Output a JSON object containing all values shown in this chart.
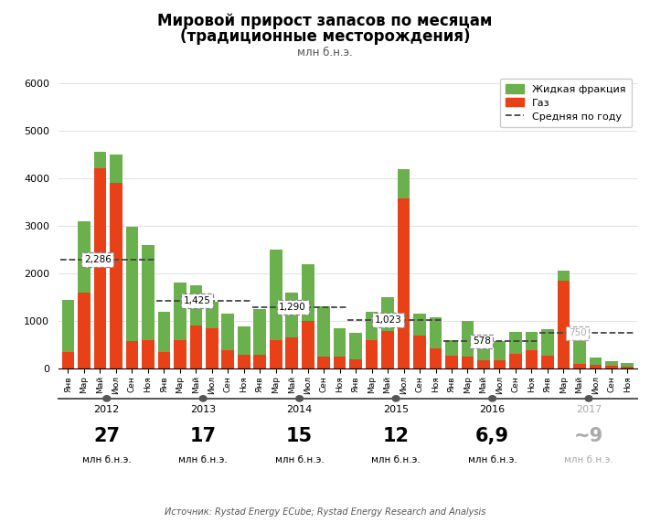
{
  "title_line1": "Мировой прирост запасов по месяцам",
  "title_line2": "(традиционные месторождения)",
  "subtitle": "млн б.н.э.",
  "source": "Источник: Rystad Energy ECube; Rystad Energy Research and Analysis",
  "legend_liquid": "Жидкая фракция",
  "legend_gas": "Газ",
  "legend_avg": "Средняя по году",
  "months": [
    "Янв",
    "Мар",
    "Май",
    "Июл",
    "Сен",
    "Ноя",
    "Янв",
    "Мар",
    "Май",
    "Июл",
    "Сен",
    "Ноя",
    "Янв",
    "Мар",
    "Май",
    "Июл",
    "Сен",
    "Ноя",
    "Янв",
    "Мар",
    "Май",
    "Июл",
    "Сен",
    "Ноя",
    "Янв",
    "Мар",
    "Май",
    "Июл",
    "Сен",
    "Ноя",
    "Янв",
    "Мар",
    "Май",
    "Июл",
    "Сен",
    "Ноя"
  ],
  "gas_values": [
    350,
    1600,
    4200,
    3900,
    580,
    600,
    350,
    600,
    900,
    850,
    380,
    300,
    300,
    600,
    650,
    1000,
    250,
    250,
    200,
    600,
    800,
    3580,
    700,
    420,
    280,
    250,
    180,
    180,
    320,
    380,
    280,
    1850,
    100,
    80,
    60,
    40
  ],
  "liquid_values": [
    1100,
    1500,
    350,
    600,
    2400,
    2000,
    850,
    1200,
    850,
    550,
    780,
    580,
    950,
    1900,
    950,
    1200,
    1050,
    600,
    550,
    600,
    700,
    600,
    450,
    650,
    320,
    750,
    320,
    400,
    450,
    400,
    550,
    200,
    700,
    160,
    100,
    80
  ],
  "year_labels": [
    "2012",
    "2013",
    "2014",
    "2015",
    "2016",
    "2017"
  ],
  "year_totals": [
    "27",
    "17",
    "15",
    "12",
    "6,9",
    "~9"
  ],
  "year_total_suffix": "млн б.н.э.",
  "avg_values": [
    2286,
    1425,
    1290,
    1023,
    578,
    750
  ],
  "color_green": "#6ab04c",
  "color_red": "#e84118",
  "color_avg_line": "#444444",
  "color_2017_text": "#aaaaaa",
  "ylim": [
    0,
    6200
  ],
  "yticks": [
    0,
    1000,
    2000,
    3000,
    4000,
    5000,
    6000
  ]
}
